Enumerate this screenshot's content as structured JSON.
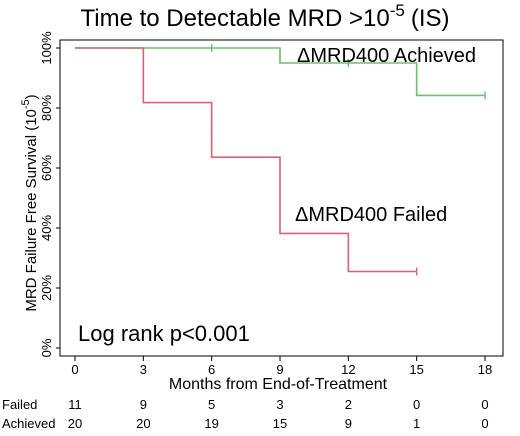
{
  "chart_data": {
    "type": "line",
    "title": "Time to Detectable MRD >10",
    "title_exponent": "-5",
    "title_suffix": "(IS)",
    "xlabel": "Months from End-of-Treatment",
    "ylabel": "MRD Failure Free Survival (10",
    "ylabel_exponent": "-5",
    "ylabel_suffix": ")",
    "xlim": [
      0,
      18
    ],
    "ylim": [
      0,
      100
    ],
    "x_ticks": [
      0,
      3,
      6,
      9,
      12,
      15,
      18
    ],
    "x_tick_labels": [
      "0",
      "3",
      "6",
      "9",
      "12",
      "15",
      "18"
    ],
    "y_ticks": [
      0,
      20,
      40,
      60,
      80,
      100
    ],
    "y_tick_labels": [
      "0%",
      "20%",
      "40%",
      "60%",
      "80%",
      "100%"
    ],
    "grid": false,
    "annotation": "Log rank p<0.001",
    "series": [
      {
        "name": "ΔMRD400 Achieved",
        "color": "#6cc36c",
        "steps": [
          [
            0,
            100
          ],
          [
            9,
            95
          ],
          [
            15,
            84.2
          ],
          [
            18,
            84.2
          ]
        ],
        "censored": [
          [
            6,
            100
          ],
          [
            9,
            97.5
          ],
          [
            12,
            95
          ],
          [
            15,
            89.5
          ],
          [
            18,
            84.2
          ]
        ]
      },
      {
        "name": "ΔMRD400 Failed",
        "color": "#e06070",
        "steps": [
          [
            0,
            100
          ],
          [
            3,
            81.8
          ],
          [
            6,
            63.6
          ],
          [
            9,
            38.2
          ],
          [
            12,
            25.5
          ],
          [
            15,
            25.5
          ]
        ],
        "censored": [
          [
            6,
            72.7
          ],
          [
            15,
            25.5
          ]
        ]
      }
    ],
    "risk_table": {
      "times": [
        0,
        3,
        6,
        9,
        12,
        15,
        18
      ],
      "rows": [
        {
          "label": "Failed",
          "counts": [
            "11",
            "9",
            "5",
            "3",
            "2",
            "0",
            "0"
          ]
        },
        {
          "label": "Achieved",
          "counts": [
            "20",
            "20",
            "19",
            "15",
            "9",
            "1",
            "0"
          ]
        }
      ]
    }
  }
}
